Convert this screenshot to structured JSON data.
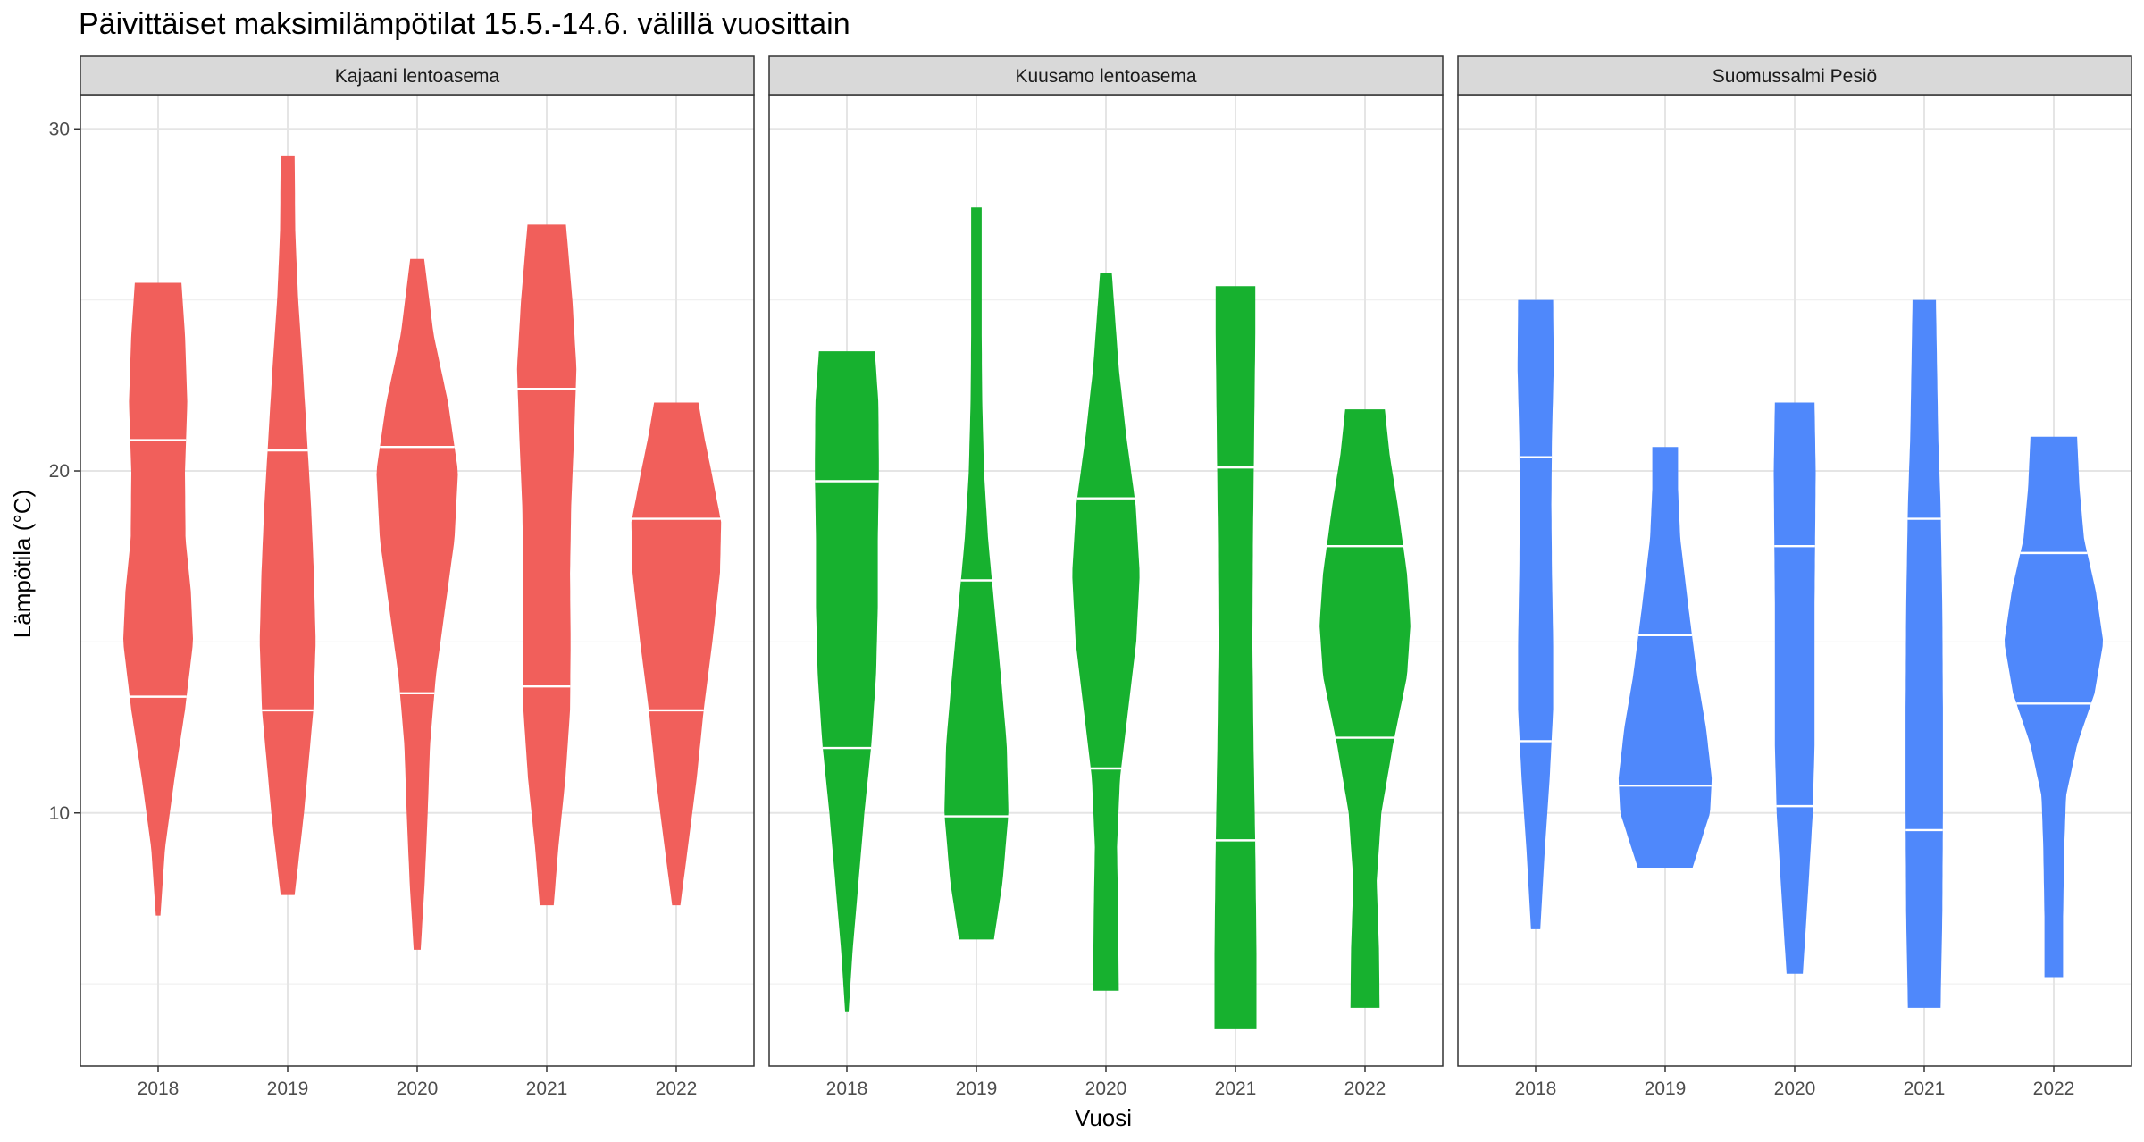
{
  "chart_data": {
    "type": "violin",
    "title": "Päivittäiset maksimilämpötilat 15.5.-14.6. välillä vuosittain",
    "xlabel": "Vuosi",
    "ylabel": "Lämpötila (°C)",
    "ylim": [
      2.6,
      31.0
    ],
    "y_ticks": [
      10,
      20,
      30
    ],
    "grid": "on",
    "legend": "none",
    "categories": [
      "2018",
      "2019",
      "2020",
      "2021",
      "2022"
    ],
    "draw_quantiles": [
      0.25,
      0.75
    ],
    "panels": [
      {
        "name": "Kajaani lentoasema",
        "color": "#F15F5B",
        "violins": [
          {
            "year": "2018",
            "min": 7.0,
            "max": 25.5,
            "q25": 13.4,
            "q75": 20.9,
            "density": [
              [
                7.0,
                0.04
              ],
              [
                9.0,
                0.12
              ],
              [
                11.0,
                0.28
              ],
              [
                13.0,
                0.46
              ],
              [
                15.0,
                0.6
              ],
              [
                16.5,
                0.56
              ],
              [
                18.0,
                0.47
              ],
              [
                20.0,
                0.46
              ],
              [
                22.0,
                0.5
              ],
              [
                24.0,
                0.46
              ],
              [
                25.5,
                0.4
              ]
            ]
          },
          {
            "year": "2019",
            "min": 7.6,
            "max": 29.2,
            "q25": 13.0,
            "q75": 20.6,
            "density": [
              [
                7.6,
                0.12
              ],
              [
                10.0,
                0.28
              ],
              [
                13.0,
                0.44
              ],
              [
                15.0,
                0.48
              ],
              [
                17.0,
                0.45
              ],
              [
                19.0,
                0.4
              ],
              [
                21.0,
                0.33
              ],
              [
                23.0,
                0.26
              ],
              [
                25.0,
                0.18
              ],
              [
                27.0,
                0.13
              ],
              [
                29.2,
                0.12
              ]
            ]
          },
          {
            "year": "2020",
            "min": 6.0,
            "max": 26.2,
            "q25": 13.5,
            "q75": 20.7,
            "density": [
              [
                6.0,
                0.06
              ],
              [
                8.0,
                0.13
              ],
              [
                10.0,
                0.18
              ],
              [
                12.0,
                0.22
              ],
              [
                14.0,
                0.32
              ],
              [
                16.0,
                0.48
              ],
              [
                18.0,
                0.64
              ],
              [
                20.0,
                0.7
              ],
              [
                22.0,
                0.53
              ],
              [
                24.0,
                0.28
              ],
              [
                26.2,
                0.12
              ]
            ]
          },
          {
            "year": "2021",
            "min": 7.3,
            "max": 27.2,
            "q25": 13.7,
            "q75": 22.4,
            "density": [
              [
                7.3,
                0.12
              ],
              [
                9.0,
                0.2
              ],
              [
                11.0,
                0.32
              ],
              [
                13.0,
                0.4
              ],
              [
                15.0,
                0.41
              ],
              [
                17.0,
                0.4
              ],
              [
                19.0,
                0.42
              ],
              [
                21.0,
                0.47
              ],
              [
                23.0,
                0.51
              ],
              [
                25.0,
                0.44
              ],
              [
                27.2,
                0.33
              ]
            ]
          },
          {
            "year": "2022",
            "min": 7.3,
            "max": 22.0,
            "q25": 13.0,
            "q75": 18.6,
            "density": [
              [
                7.3,
                0.07
              ],
              [
                9.0,
                0.2
              ],
              [
                11.0,
                0.35
              ],
              [
                13.0,
                0.47
              ],
              [
                15.0,
                0.62
              ],
              [
                17.0,
                0.75
              ],
              [
                18.5,
                0.77
              ],
              [
                20.0,
                0.6
              ],
              [
                21.0,
                0.48
              ],
              [
                22.0,
                0.38
              ]
            ]
          }
        ]
      },
      {
        "name": "Kuusamo lentoasema",
        "color": "#17B12F",
        "violins": [
          {
            "year": "2018",
            "min": 4.2,
            "max": 23.5,
            "q25": 11.9,
            "q75": 19.7,
            "density": [
              [
                4.2,
                0.03
              ],
              [
                6.0,
                0.1
              ],
              [
                8.0,
                0.2
              ],
              [
                10.0,
                0.3
              ],
              [
                12.0,
                0.42
              ],
              [
                14.0,
                0.5
              ],
              [
                16.0,
                0.53
              ],
              [
                18.0,
                0.53
              ],
              [
                20.0,
                0.55
              ],
              [
                22.0,
                0.54
              ],
              [
                23.5,
                0.48
              ]
            ]
          },
          {
            "year": "2019",
            "min": 6.3,
            "max": 27.7,
            "q25": 9.9,
            "q75": 16.8,
            "density": [
              [
                6.3,
                0.3
              ],
              [
                8.0,
                0.45
              ],
              [
                10.0,
                0.55
              ],
              [
                12.0,
                0.52
              ],
              [
                14.0,
                0.42
              ],
              [
                16.0,
                0.31
              ],
              [
                18.0,
                0.2
              ],
              [
                20.0,
                0.13
              ],
              [
                22.0,
                0.1
              ],
              [
                24.0,
                0.09
              ],
              [
                27.7,
                0.09
              ]
            ]
          },
          {
            "year": "2020",
            "min": 4.8,
            "max": 25.8,
            "q25": 11.3,
            "q75": 19.2,
            "density": [
              [
                4.8,
                0.22
              ],
              [
                7.0,
                0.21
              ],
              [
                9.0,
                0.19
              ],
              [
                11.0,
                0.24
              ],
              [
                13.0,
                0.38
              ],
              [
                15.0,
                0.52
              ],
              [
                17.0,
                0.58
              ],
              [
                19.0,
                0.51
              ],
              [
                21.0,
                0.35
              ],
              [
                23.0,
                0.22
              ],
              [
                25.8,
                0.1
              ]
            ]
          },
          {
            "year": "2021",
            "min": 3.7,
            "max": 25.4,
            "q25": 9.2,
            "q75": 20.1,
            "density": [
              [
                3.7,
                0.36
              ],
              [
                6.0,
                0.36
              ],
              [
                9.0,
                0.34
              ],
              [
                12.0,
                0.31
              ],
              [
                15.0,
                0.29
              ],
              [
                18.0,
                0.3
              ],
              [
                21.0,
                0.32
              ],
              [
                24.0,
                0.34
              ],
              [
                25.4,
                0.34
              ]
            ]
          },
          {
            "year": "2022",
            "min": 4.3,
            "max": 21.8,
            "q25": 12.2,
            "q75": 17.8,
            "density": [
              [
                4.3,
                0.25
              ],
              [
                6.0,
                0.24
              ],
              [
                8.0,
                0.2
              ],
              [
                10.0,
                0.28
              ],
              [
                12.0,
                0.48
              ],
              [
                14.0,
                0.72
              ],
              [
                15.5,
                0.78
              ],
              [
                17.0,
                0.72
              ],
              [
                19.0,
                0.56
              ],
              [
                20.5,
                0.42
              ],
              [
                21.8,
                0.34
              ]
            ]
          }
        ]
      },
      {
        "name": "Suomussalmi Pesiö",
        "color": "#4F88FB",
        "violins": [
          {
            "year": "2018",
            "min": 6.6,
            "max": 25.0,
            "q25": 12.1,
            "q75": 20.4,
            "density": [
              [
                6.6,
                0.08
              ],
              [
                9.0,
                0.16
              ],
              [
                11.0,
                0.24
              ],
              [
                13.0,
                0.3
              ],
              [
                15.0,
                0.3
              ],
              [
                17.0,
                0.28
              ],
              [
                19.0,
                0.27
              ],
              [
                21.0,
                0.28
              ],
              [
                23.0,
                0.31
              ],
              [
                25.0,
                0.3
              ]
            ]
          },
          {
            "year": "2019",
            "min": 8.4,
            "max": 20.7,
            "q25": 10.8,
            "q75": 15.2,
            "density": [
              [
                8.4,
                0.47
              ],
              [
                10.0,
                0.77
              ],
              [
                11.0,
                0.8
              ],
              [
                12.5,
                0.7
              ],
              [
                14.0,
                0.55
              ],
              [
                16.0,
                0.4
              ],
              [
                18.0,
                0.26
              ],
              [
                19.5,
                0.22
              ],
              [
                20.7,
                0.22
              ]
            ]
          },
          {
            "year": "2020",
            "min": 5.3,
            "max": 22.0,
            "q25": 10.2,
            "q75": 17.8,
            "density": [
              [
                5.3,
                0.14
              ],
              [
                8.0,
                0.24
              ],
              [
                10.0,
                0.31
              ],
              [
                12.0,
                0.34
              ],
              [
                14.0,
                0.34
              ],
              [
                16.0,
                0.34
              ],
              [
                18.0,
                0.35
              ],
              [
                20.0,
                0.36
              ],
              [
                22.0,
                0.34
              ]
            ]
          },
          {
            "year": "2021",
            "min": 4.3,
            "max": 25.0,
            "q25": 9.5,
            "q75": 18.6,
            "density": [
              [
                4.3,
                0.28
              ],
              [
                7.0,
                0.31
              ],
              [
                10.0,
                0.32
              ],
              [
                13.0,
                0.32
              ],
              [
                16.0,
                0.31
              ],
              [
                19.0,
                0.28
              ],
              [
                21.0,
                0.24
              ],
              [
                23.0,
                0.22
              ],
              [
                25.0,
                0.2
              ]
            ]
          },
          {
            "year": "2022",
            "min": 5.2,
            "max": 21.0,
            "q25": 13.2,
            "q75": 17.6,
            "density": [
              [
                5.2,
                0.16
              ],
              [
                7.0,
                0.16
              ],
              [
                9.0,
                0.18
              ],
              [
                10.5,
                0.21
              ],
              [
                12.0,
                0.4
              ],
              [
                13.5,
                0.7
              ],
              [
                15.0,
                0.85
              ],
              [
                16.5,
                0.72
              ],
              [
                18.0,
                0.52
              ],
              [
                19.5,
                0.44
              ],
              [
                21.0,
                0.4
              ]
            ]
          }
        ]
      }
    ]
  }
}
